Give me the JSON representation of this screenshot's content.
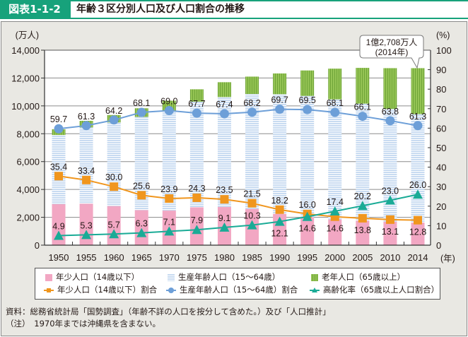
{
  "header": {
    "figure_number": "図表1-1-2",
    "title": "年齢３区分別人口及び人口割合の推移"
  },
  "chart_data": {
    "type": "bar",
    "subtype": "stacked bar with line overlay (dual axis)",
    "title": "年齢３区分別人口及び人口割合の推移",
    "xlabel": "(年)",
    "ylabel": "(万人)",
    "ylabel_right": "(%)",
    "categories": [
      "1950",
      "1955",
      "1960",
      "1965",
      "1970",
      "1975",
      "1980",
      "1985",
      "1990",
      "1995",
      "2000",
      "2005",
      "2010",
      "2014"
    ],
    "ylim": [
      0,
      14000
    ],
    "ylim_right": [
      0,
      100
    ],
    "yticks": [
      "0",
      "2,000",
      "4,000",
      "6,000",
      "8,000",
      "10,000",
      "12,000",
      "14,000"
    ],
    "yticks_right": [
      "0",
      "10",
      "20",
      "30",
      "40",
      "50",
      "60",
      "70",
      "80",
      "90",
      "100"
    ],
    "grid": true,
    "legend_position": "bottom",
    "series": [
      {
        "name": "年少人口（14歳以下）",
        "type": "bar",
        "axis": "left",
        "stack": "population",
        "color": "#f2a7c3",
        "values": [
          2943,
          2980,
          2807,
          2517,
          2482,
          2722,
          2751,
          2603,
          2249,
          2001,
          1847,
          1752,
          1680,
          1623
        ]
      },
      {
        "name": "生産年齢人口（15～64歳）",
        "type": "bar",
        "axis": "left",
        "stack": "population",
        "color": "#c8dbf1",
        "values": [
          4966,
          5473,
          6000,
          6693,
          7157,
          7581,
          7883,
          8251,
          8590,
          8716,
          8622,
          8409,
          8103,
          7785
        ]
      },
      {
        "name": "老年人口（65歳以上）",
        "type": "bar",
        "axis": "left",
        "stack": "population",
        "color": "#95c455",
        "values": [
          411,
          475,
          535,
          618,
          733,
          887,
          1065,
          1247,
          1489,
          1826,
          2204,
          2567,
          2925,
          3300
        ]
      },
      {
        "name": "年少人口（14歳以下）割合",
        "type": "line",
        "axis": "right",
        "marker": "square",
        "color": "#f0961e",
        "values": [
          35.4,
          33.4,
          30.0,
          25.6,
          23.9,
          24.3,
          23.5,
          21.5,
          18.2,
          16.0,
          14.6,
          13.8,
          13.1,
          12.8
        ],
        "labels": [
          "35.4",
          "33.4",
          "30.0",
          "25.6",
          "23.9",
          "24.3",
          "23.5",
          "21.5",
          "18.2",
          "16.0",
          "14.6",
          "13.8",
          "13.1",
          "12.8"
        ]
      },
      {
        "name": "生産年齢人口（15～64歳）割合",
        "type": "line",
        "axis": "right",
        "marker": "circle",
        "color": "#6d9fd8",
        "values": [
          59.7,
          61.3,
          64.2,
          68.1,
          69.0,
          67.7,
          67.4,
          68.2,
          69.7,
          69.5,
          68.1,
          66.1,
          63.8,
          61.3
        ],
        "labels": [
          "59.7",
          "61.3",
          "64.2",
          "68.1",
          "69.0",
          "67.7",
          "67.4",
          "68.2",
          "69.7",
          "69.5",
          "68.1",
          "66.1",
          "63.8",
          "61.3"
        ]
      },
      {
        "name": "高齢化率（65歳以上人口割合）",
        "type": "line",
        "axis": "right",
        "marker": "triangle",
        "color": "#1aab96",
        "values": [
          4.9,
          5.3,
          5.7,
          6.3,
          7.1,
          7.9,
          9.1,
          10.3,
          12.1,
          14.6,
          17.4,
          20.2,
          23.0,
          26.0
        ],
        "labels": [
          "4.9",
          "5.3",
          "5.7",
          "6.3",
          "7.1",
          "7.9",
          "9.1",
          "10.3",
          "12.1",
          "14.6",
          "17.4",
          "20.2",
          "23.0",
          "26.0"
        ]
      }
    ],
    "annotation": {
      "target_category": "2014",
      "line1": "1億2,708万人",
      "line2": "(2014年)"
    }
  },
  "notes": {
    "source": "資料：総務省統計局「国勢調査」（年齢不詳の人口を按分して含めた。）及び「人口推計」",
    "note": "（注）　1970年までは沖縄県を含まない。"
  }
}
